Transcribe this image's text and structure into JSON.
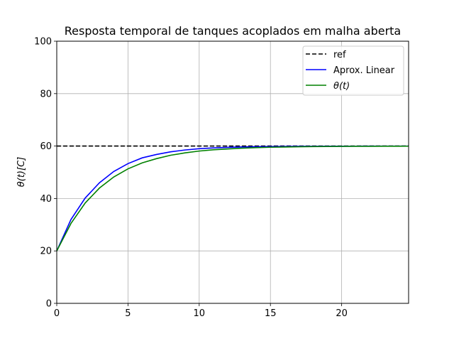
{
  "chart_data": {
    "type": "line",
    "title": "Resposta temporal de tanques acoplados em malha aberta",
    "xlabel": "",
    "ylabel": "θ(t)[C]",
    "xlim": [
      0,
      24.7
    ],
    "ylim": [
      0,
      100
    ],
    "xticks": [
      "0",
      "5",
      "10",
      "15",
      "20"
    ],
    "yticks": [
      "0",
      "20",
      "40",
      "60",
      "80",
      "100"
    ],
    "grid": true,
    "legend_position": "top-right",
    "series": [
      {
        "name": "ref",
        "color": "#000000",
        "style": "dashed",
        "x": [
          0,
          24.7
        ],
        "y": [
          60,
          60
        ]
      },
      {
        "name": "Aprox. Linear",
        "color": "#0000ff",
        "style": "solid",
        "x": [
          0,
          1,
          2,
          3,
          4,
          5,
          6,
          7,
          8,
          9,
          10,
          11,
          12,
          13,
          14,
          15,
          16,
          17,
          18,
          19,
          20,
          21,
          22,
          23,
          24,
          24.7
        ],
        "y": [
          20,
          32,
          40.2,
          46,
          50.3,
          53.3,
          55.5,
          56.8,
          57.8,
          58.5,
          59,
          59.3,
          59.5,
          59.65,
          59.75,
          59.8,
          59.85,
          59.9,
          59.92,
          59.94,
          59.95,
          59.96,
          59.97,
          59.98,
          59.98,
          59.99
        ]
      },
      {
        "name": "θ(t)",
        "color": "#008000",
        "style": "solid",
        "x": [
          0,
          1,
          2,
          3,
          4,
          5,
          6,
          7,
          8,
          9,
          10,
          11,
          12,
          13,
          14,
          15,
          16,
          17,
          18,
          19,
          20,
          21,
          22,
          23,
          24,
          24.7
        ],
        "y": [
          20,
          30.5,
          38.3,
          44,
          48.2,
          51.3,
          53.6,
          55.2,
          56.5,
          57.4,
          58.1,
          58.6,
          58.9,
          59.2,
          59.4,
          59.55,
          59.65,
          59.75,
          59.8,
          59.85,
          59.88,
          59.9,
          59.92,
          59.94,
          59.95,
          59.96
        ]
      }
    ]
  }
}
